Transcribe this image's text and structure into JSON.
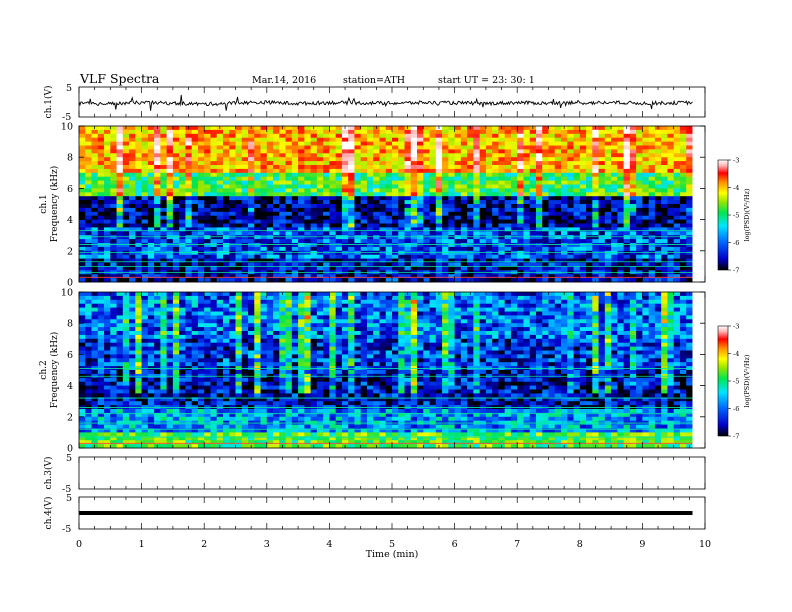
{
  "header": {
    "title": "VLF  Spectra",
    "date": "Mar.14, 2016",
    "station": "station=ATH",
    "start": "start  UT  =   23: 30: 1"
  },
  "chart_data": [
    {
      "type": "line",
      "panel": "ch1-waveform",
      "ylabel": "ch.1(V)",
      "ylim": [
        -5,
        5
      ],
      "yticks": [
        "5",
        "-5"
      ],
      "xlim": [
        0,
        10
      ],
      "trace": "noisy signal near 0 V",
      "x": [
        0,
        0.5,
        1,
        1.5,
        2,
        2.5,
        3,
        3.5,
        4,
        4.5,
        5,
        5.5,
        6,
        6.5,
        7,
        7.5,
        8,
        8.5,
        9,
        9.5,
        9.8
      ],
      "y": [
        -0.5,
        -0.6,
        -0.2,
        -0.4,
        -0.7,
        -0.3,
        -0.1,
        -0.5,
        -0.2,
        -0.3,
        -0.4,
        -0.2,
        -0.3,
        -0.5,
        -0.2,
        -0.4,
        -0.3,
        -0.2,
        -0.4,
        -0.3,
        -0.2
      ]
    },
    {
      "type": "heatmap",
      "panel": "ch1-spectrogram",
      "ylabel": "ch.1\nFrequency  (kHz)",
      "ylim": [
        0,
        10
      ],
      "yticks": [
        "0",
        "2",
        "4",
        "6",
        "8",
        "10"
      ],
      "xlim": [
        0,
        10
      ],
      "data_end_min": 9.8,
      "colorbar": {
        "label": "log(PSD)(V²/Hz)",
        "range": [
          -7,
          -3
        ],
        "ticks": [
          "-3",
          "-4",
          "-5",
          "-6",
          "-7"
        ]
      },
      "mean_logpsd_by_band": [
        {
          "band_khz": [
            0,
            1.5
          ],
          "logpsd": -6.6
        },
        {
          "band_khz": [
            1.5,
            3.5
          ],
          "logpsd": -6.3
        },
        {
          "band_khz": [
            3.5,
            5.5
          ],
          "logpsd": -6.7
        },
        {
          "band_khz": [
            5.5,
            7
          ],
          "logpsd": -5.3
        },
        {
          "band_khz": [
            7,
            10
          ],
          "logpsd": -4.4
        }
      ]
    },
    {
      "type": "heatmap",
      "panel": "ch2-spectrogram",
      "ylabel": "ch.2\nFrequency  (kHz)",
      "ylim": [
        0,
        10
      ],
      "yticks": [
        "0",
        "2",
        "4",
        "6",
        "8",
        "10"
      ],
      "xlim": [
        0,
        10
      ],
      "data_end_min": 9.8,
      "colorbar": {
        "label": "log(PSD)(V²/Hz)",
        "range": [
          -7,
          -3
        ],
        "ticks": [
          "-3",
          "-4",
          "-5",
          "-6",
          "-7"
        ]
      },
      "mean_logpsd_by_band": [
        {
          "band_khz": [
            0,
            1
          ],
          "logpsd": -5.2
        },
        {
          "band_khz": [
            1,
            2.5
          ],
          "logpsd": -6.0
        },
        {
          "band_khz": [
            2.5,
            5
          ],
          "logpsd": -6.6
        },
        {
          "band_khz": [
            5,
            7
          ],
          "logpsd": -6.4
        },
        {
          "band_khz": [
            7,
            10
          ],
          "logpsd": -6.2
        }
      ]
    },
    {
      "type": "line",
      "panel": "ch3-waveform",
      "ylabel": "ch.3(V)",
      "ylim": [
        -5,
        5
      ],
      "yticks": [
        "5",
        "-5"
      ],
      "xlim": [
        0,
        10
      ],
      "x": [],
      "y": []
    },
    {
      "type": "line",
      "panel": "ch4-waveform",
      "ylabel": "ch.4(V)",
      "ylim": [
        -5,
        5
      ],
      "yticks": [
        "5",
        "-5"
      ],
      "xlim": [
        0,
        10
      ],
      "x": [
        0,
        9.8
      ],
      "y": [
        0,
        0
      ]
    }
  ],
  "xaxis": {
    "label": "Time  (min)",
    "ticks": [
      "0",
      "1",
      "2",
      "3",
      "4",
      "5",
      "6",
      "7",
      "8",
      "9",
      "10"
    ]
  },
  "colors": {
    "colormap": [
      "#000000",
      "#0000c8",
      "#0064ff",
      "#00e6ff",
      "#00e650",
      "#96e600",
      "#ffff00",
      "#ff8c00",
      "#ff0000",
      "#ffb4b4",
      "#ffffff"
    ]
  }
}
